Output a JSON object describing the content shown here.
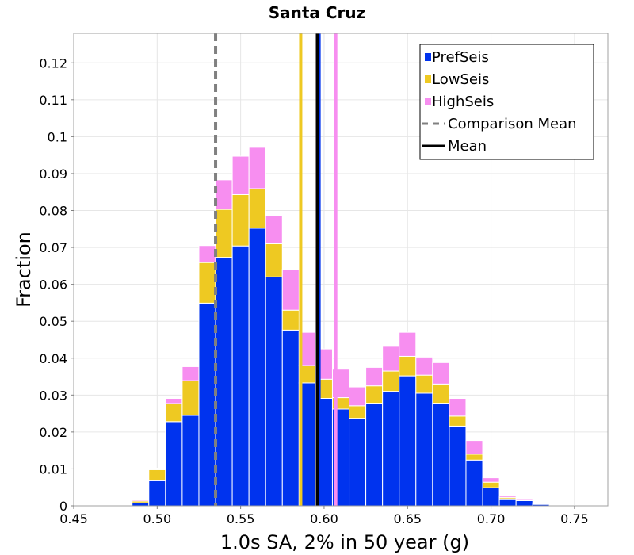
{
  "chart_data": {
    "type": "bar",
    "stacked": true,
    "title": "Santa Cruz",
    "xlabel": "1.0s SA, 2% in 50 year (g)",
    "ylabel": "Fraction",
    "xlim": [
      0.45,
      0.77
    ],
    "ylim": [
      0,
      0.128
    ],
    "grid": true,
    "legend_position": "top-right",
    "bin_width": 0.01,
    "x_ticks": [
      0.45,
      0.5,
      0.55,
      0.6,
      0.65,
      0.7,
      0.75
    ],
    "x_tick_labels": [
      "0.45",
      "0.50",
      "0.55",
      "0.60",
      "0.65",
      "0.70",
      "0.75"
    ],
    "y_ticks": [
      0,
      0.01,
      0.02,
      0.03,
      0.04,
      0.05,
      0.06,
      0.07,
      0.08,
      0.09,
      0.1,
      0.11,
      0.12
    ],
    "y_tick_labels": [
      "0",
      "0.01",
      "0.02",
      "0.03",
      "0.04",
      "0.05",
      "0.06",
      "0.07",
      "0.08",
      "0.09",
      "0.1",
      "0.11",
      "0.12"
    ],
    "bin_centers": [
      0.48,
      0.49,
      0.5,
      0.51,
      0.52,
      0.53,
      0.54,
      0.55,
      0.56,
      0.57,
      0.58,
      0.59,
      0.6,
      0.61,
      0.62,
      0.63,
      0.64,
      0.65,
      0.66,
      0.67,
      0.68,
      0.69,
      0.7,
      0.71,
      0.72,
      0.73,
      0.74,
      0.75
    ],
    "series": [
      {
        "name": "PrefSeis",
        "color": "#0033ee",
        "values": [
          0.0002,
          0.0008,
          0.0068,
          0.0228,
          0.0245,
          0.0549,
          0.0673,
          0.0704,
          0.0752,
          0.062,
          0.0476,
          0.0333,
          0.0291,
          0.0262,
          0.0237,
          0.0278,
          0.031,
          0.0352,
          0.0305,
          0.0278,
          0.0216,
          0.0124,
          0.0049,
          0.0019,
          0.0014,
          0.0004,
          0.0001,
          0.0
        ]
      },
      {
        "name": "LowSeis",
        "color": "#eec922",
        "values": [
          0.0,
          0.0005,
          0.003,
          0.0049,
          0.0094,
          0.011,
          0.013,
          0.0139,
          0.0107,
          0.009,
          0.0054,
          0.0047,
          0.0052,
          0.0031,
          0.0034,
          0.0047,
          0.0055,
          0.0053,
          0.0049,
          0.0052,
          0.0027,
          0.0016,
          0.0015,
          0.0004,
          0.0003,
          0.0002,
          0.0,
          0.0
        ]
      },
      {
        "name": "HighSeis",
        "color": "#f78ef0",
        "values": [
          0.0001,
          0.0003,
          0.0004,
          0.0014,
          0.0038,
          0.0046,
          0.008,
          0.0104,
          0.0112,
          0.0075,
          0.0111,
          0.009,
          0.0082,
          0.0077,
          0.0051,
          0.005,
          0.0067,
          0.0065,
          0.0049,
          0.0058,
          0.0048,
          0.0037,
          0.0012,
          0.0004,
          0.0003,
          0.0002,
          0.0001,
          0.0001
        ]
      }
    ],
    "vertical_lines": [
      {
        "name": "LowSeis mean",
        "x": 0.586,
        "color": "#eec922",
        "style": "solid"
      },
      {
        "name": "HighSeis mean",
        "x": 0.607,
        "color": "#f78ef0",
        "style": "solid"
      },
      {
        "name": "PrefSeis mean",
        "x": 0.597,
        "color": "#0033ee",
        "style": "solid"
      },
      {
        "name": "Comparison Mean",
        "x": 0.535,
        "color": "#808080",
        "style": "dashed"
      },
      {
        "name": "Mean",
        "x": 0.596,
        "color": "#000000",
        "style": "solid"
      }
    ],
    "legend": [
      {
        "label": "PrefSeis",
        "kind": "patch",
        "color": "#0033ee"
      },
      {
        "label": "LowSeis",
        "kind": "patch",
        "color": "#eec922"
      },
      {
        "label": "HighSeis",
        "kind": "patch",
        "color": "#f78ef0"
      },
      {
        "label": "Comparison Mean",
        "kind": "dashed-line",
        "color": "#808080"
      },
      {
        "label": "Mean",
        "kind": "solid-line",
        "color": "#000000"
      }
    ]
  }
}
